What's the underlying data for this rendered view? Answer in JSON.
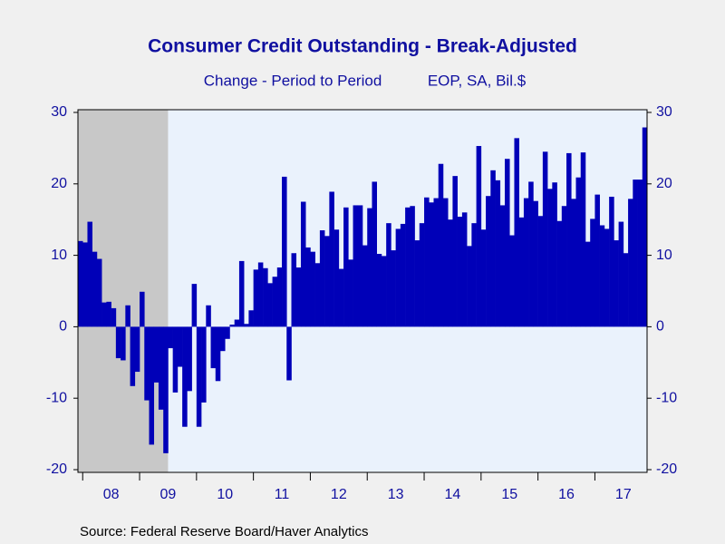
{
  "chart_data": {
    "type": "bar",
    "title": "Consumer Credit Outstanding - Break-Adjusted",
    "subtitle": [
      "Change - Period to Period",
      "EOP, SA, Bil.$"
    ],
    "source": "Source:  Federal Reserve Board/Haver Analytics",
    "categories": [
      null,
      null,
      null,
      null,
      null,
      null,
      null,
      "08",
      null,
      null,
      null,
      null,
      null,
      null,
      null,
      null,
      null,
      null,
      null,
      "09",
      null,
      null,
      null,
      null,
      null,
      null,
      null,
      null,
      null,
      null,
      null,
      "10",
      null,
      null,
      null,
      null,
      null,
      null,
      null,
      null,
      null,
      null,
      null,
      "11",
      null,
      null,
      null,
      null,
      null,
      null,
      null,
      null,
      null,
      null,
      null,
      "12",
      null,
      null,
      null,
      null,
      null,
      null,
      null,
      null,
      null,
      null,
      null,
      "13",
      null,
      null,
      null,
      null,
      null,
      null,
      null,
      null,
      null,
      null,
      null,
      "14",
      null,
      null,
      null,
      null,
      null,
      null,
      null,
      null,
      null,
      null,
      null,
      "15",
      null,
      null,
      null,
      null,
      null,
      null,
      null,
      null,
      null,
      null,
      null,
      "16",
      null,
      null,
      null,
      null,
      null,
      null,
      null,
      null,
      null,
      null,
      null,
      "17",
      null,
      null,
      null,
      null
    ],
    "values": [
      12.0,
      11.8,
      14.7,
      10.5,
      9.5,
      3.4,
      3.5,
      2.6,
      -4.4,
      -4.7,
      3.0,
      -8.3,
      -6.3,
      4.9,
      -10.3,
      -16.5,
      -7.8,
      -11.6,
      -17.7,
      -3.0,
      -9.2,
      -5.6,
      -14.0,
      -9.0,
      6.0,
      -14.0,
      -10.6,
      3.0,
      -5.8,
      -7.6,
      -3.4,
      -1.7,
      0.3,
      1.0,
      9.2,
      0.4,
      2.3,
      8.0,
      9.0,
      8.2,
      6.1,
      7.0,
      8.3,
      21.0,
      -7.5,
      10.3,
      8.3,
      17.5,
      11.1,
      10.5,
      8.9,
      13.5,
      12.7,
      18.9,
      13.6,
      8.1,
      16.7,
      9.4,
      17.0,
      17.0,
      11.4,
      16.6,
      20.3,
      10.2,
      9.9,
      14.5,
      10.7,
      13.7,
      14.4,
      16.7,
      16.9,
      12.1,
      14.5,
      18.1,
      17.4,
      18.0,
      22.8,
      18.0,
      15.0,
      21.1,
      15.4,
      16.0,
      11.3,
      14.5,
      25.3,
      13.6,
      18.3,
      21.9,
      20.5,
      17.0,
      23.5,
      12.8,
      26.4,
      15.3,
      18.0,
      20.3,
      17.6,
      15.5,
      24.5,
      19.3,
      20.2,
      14.8,
      16.9,
      24.3,
      17.9,
      20.9,
      24.4,
      11.9,
      15.1,
      18.5,
      14.2,
      13.7,
      18.2,
      12.1,
      14.7,
      10.3,
      17.9,
      20.6,
      20.6,
      27.9
    ],
    "color": "#0000b8",
    "ylim": [
      -20,
      30
    ],
    "yticks": [
      -20,
      -10,
      0,
      10,
      20,
      30
    ],
    "recession_color": "#c8c8c8",
    "recession": [
      [
        0,
        18
      ]
    ]
  }
}
